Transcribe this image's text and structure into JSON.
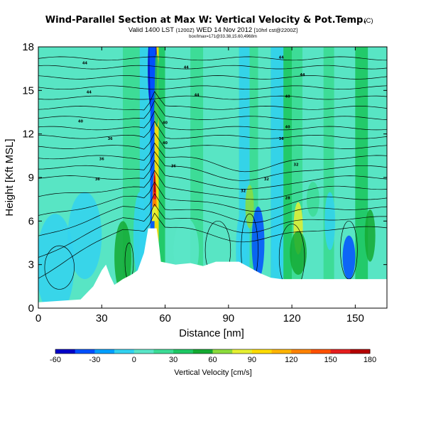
{
  "chart_data": {
    "type": "heatmap",
    "title": "Wind-Parallel Section at Max W: Vertical Velocity & Pot.Temp.",
    "title_mark": "(C)",
    "subtitle_valid": "Valid 1400 LST",
    "subtitle_init": "(1200Z)",
    "subtitle_date": "WED 14 Nov 2012",
    "subtitle_run": "[10hrl cst@2200Z]",
    "subtitle_small": "box/Imax=171@33.38,15.60,4968m",
    "xlabel": "Distance [nm]",
    "ylabel": "Height [Kft MSL]",
    "xlim": [
      0,
      165
    ],
    "ylim": [
      0,
      18
    ],
    "xticks": [
      "0",
      "30",
      "60",
      "90",
      "120",
      "150"
    ],
    "yticks": [
      "0",
      "3",
      "6",
      "9",
      "12",
      "15",
      "18"
    ],
    "colorbar": {
      "label": "Vertical Velocity [cm/s]",
      "ticks": [
        "-60",
        "-30",
        "0",
        "30",
        "60",
        "90",
        "120",
        "150",
        "180"
      ],
      "colors": [
        "#0000c8",
        "#0050ff",
        "#00a0ff",
        "#32d2f0",
        "#5ae6c8",
        "#3cdc96",
        "#1ec864",
        "#14aa32",
        "#8cdc3c",
        "#e6f032",
        "#ffdc00",
        "#ffb400",
        "#ff8200",
        "#ff5000",
        "#e61e1e",
        "#b40000"
      ]
    },
    "theta_contour_labels": [
      "44",
      "44",
      "44",
      "44",
      "44",
      "44",
      "40",
      "40",
      "40",
      "40",
      "40",
      "36",
      "36",
      "36",
      "36",
      "36",
      "32",
      "32",
      "32",
      "28"
    ]
  }
}
